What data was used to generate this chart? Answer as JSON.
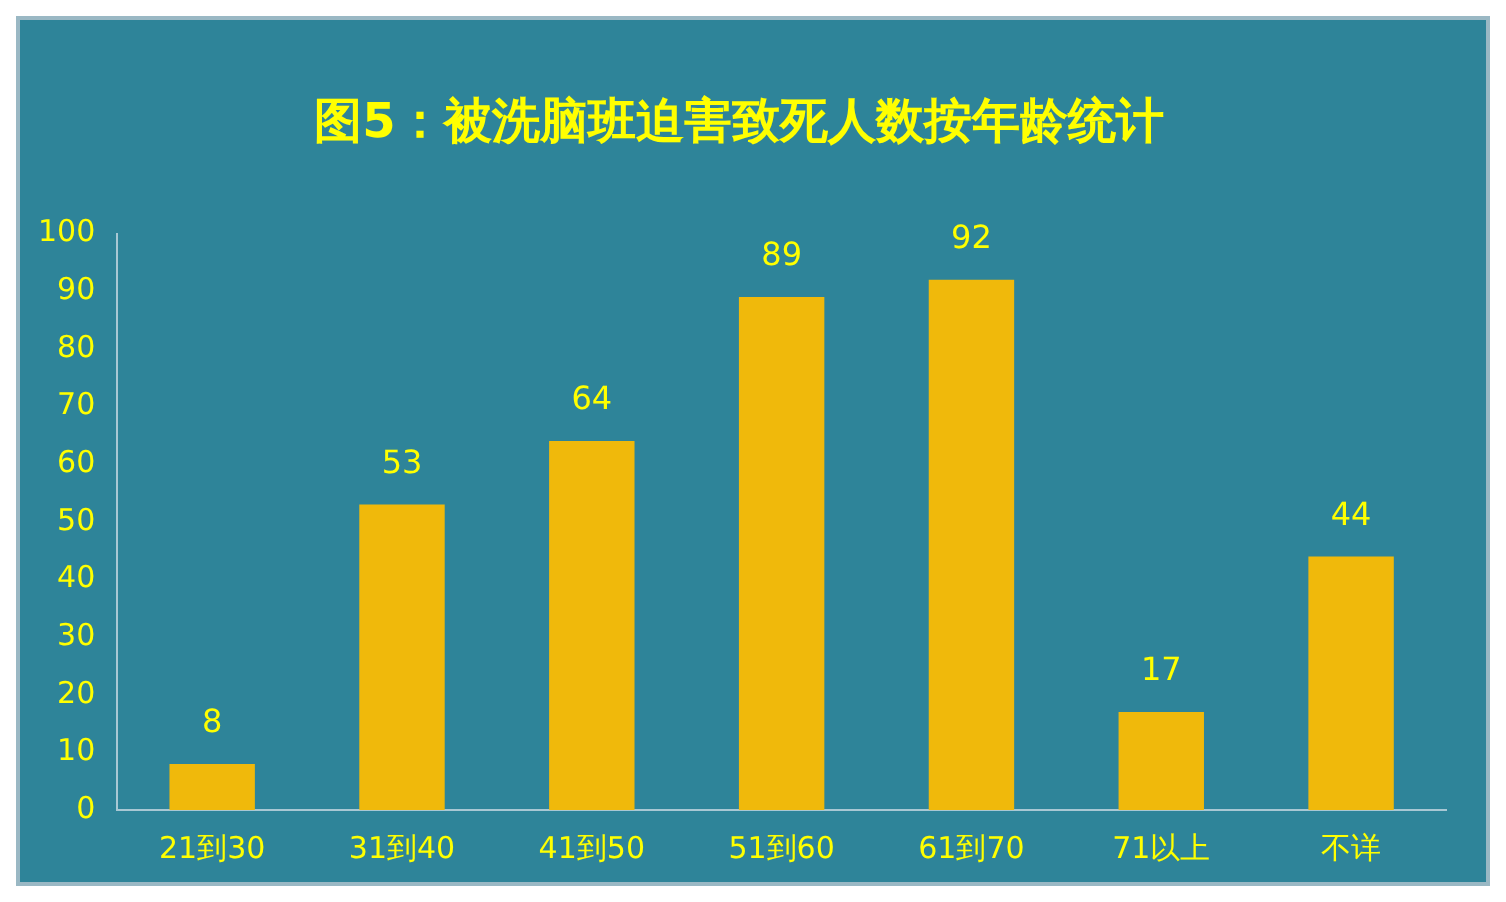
{
  "chart_data": {
    "type": "bar",
    "title": "图5：被洗脑班迫害致死人数按年龄统计",
    "categories": [
      "21到30",
      "31到40",
      "41到50",
      "51到60",
      "61到70",
      "71以上",
      "不详"
    ],
    "values": [
      8,
      53,
      64,
      89,
      92,
      17,
      44
    ],
    "color": "#f0b90b",
    "ylim": [
      0,
      100
    ],
    "yticks": [
      0,
      10,
      20,
      30,
      40,
      50,
      60,
      70,
      80,
      90,
      100
    ],
    "data_labels": true
  }
}
